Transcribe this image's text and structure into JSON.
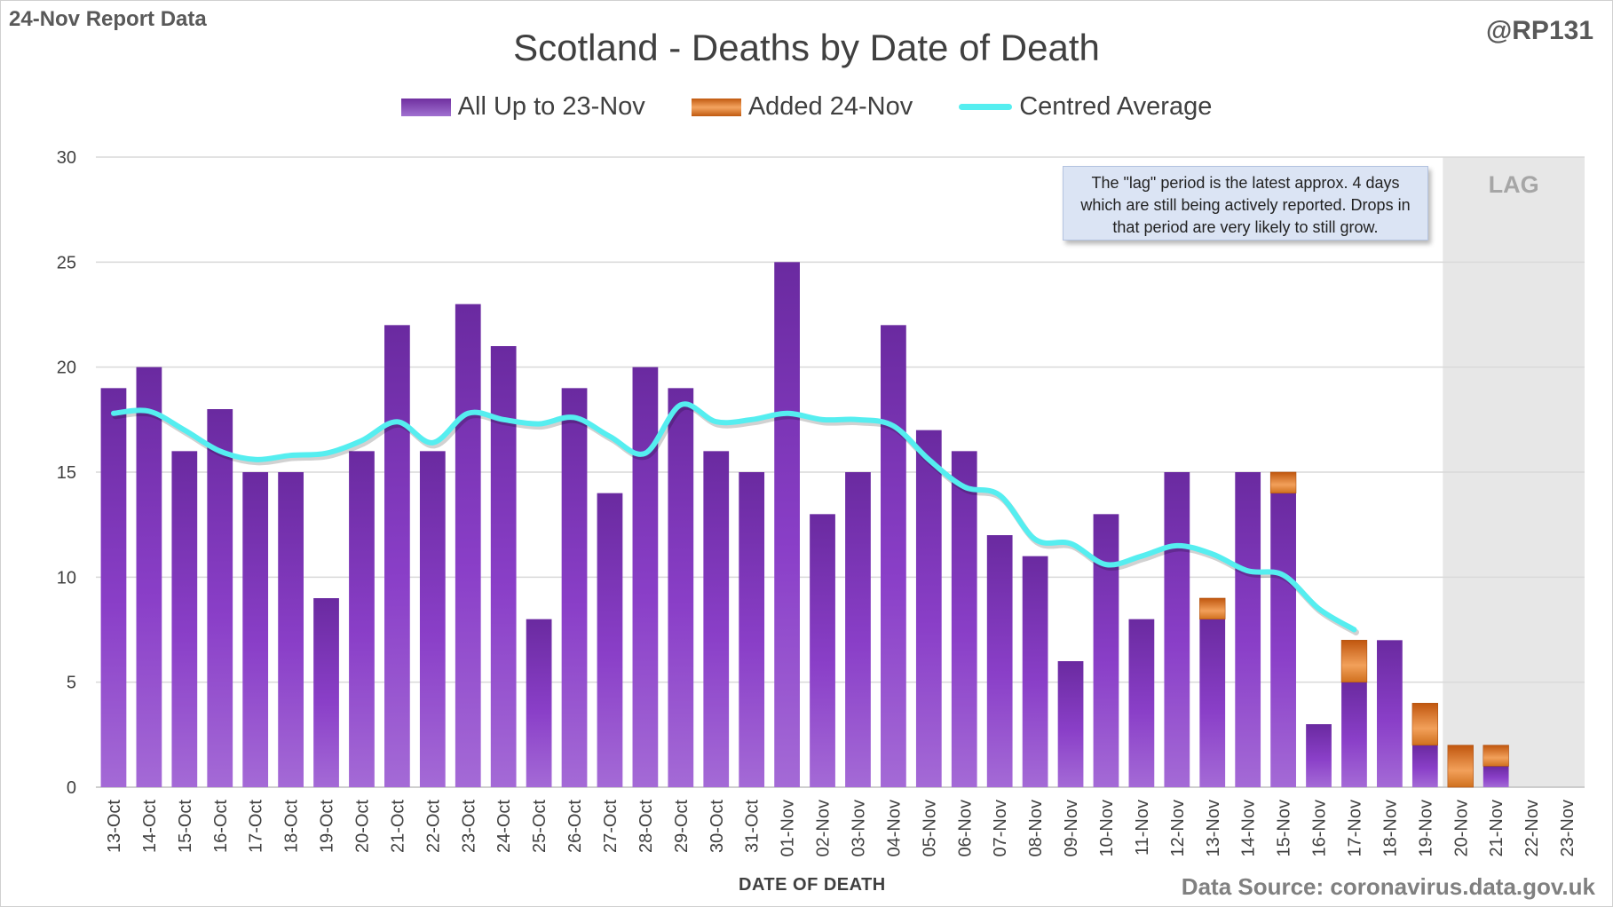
{
  "corner_left": "24-Nov Report Data",
  "corner_right": "@RP131",
  "source": "Data Source: coronavirus.data.gov.uk",
  "note": "The \"lag\" period is the latest approx. 4 days which are still being actively reported. Drops in that period are very likely to still grow.",
  "colors": {
    "base": "#7030a0",
    "added": "#e07828",
    "average": "#55eef0",
    "lag_shade": "#e7e7e7",
    "grid": "#d9d9d9"
  },
  "chart_data": {
    "type": "bar",
    "title": "Scotland - Deaths by Date of Death",
    "xlabel": "DATE OF DEATH",
    "ylabel": "",
    "ylim": [
      0,
      30
    ],
    "yticks": [
      0,
      5,
      10,
      15,
      20,
      25,
      30
    ],
    "grid": true,
    "legend_position": "top",
    "stacked": true,
    "categories": [
      "13-Oct",
      "14-Oct",
      "15-Oct",
      "16-Oct",
      "17-Oct",
      "18-Oct",
      "19-Oct",
      "20-Oct",
      "21-Oct",
      "22-Oct",
      "23-Oct",
      "24-Oct",
      "25-Oct",
      "26-Oct",
      "27-Oct",
      "28-Oct",
      "29-Oct",
      "30-Oct",
      "31-Oct",
      "01-Nov",
      "02-Nov",
      "03-Nov",
      "04-Nov",
      "05-Nov",
      "06-Nov",
      "07-Nov",
      "08-Nov",
      "09-Nov",
      "10-Nov",
      "11-Nov",
      "12-Nov",
      "13-Nov",
      "14-Nov",
      "15-Nov",
      "16-Nov",
      "17-Nov",
      "18-Nov",
      "19-Nov",
      "20-Nov",
      "21-Nov",
      "22-Nov",
      "23-Nov"
    ],
    "series": [
      {
        "name": "All Up to 23-Nov",
        "kind": "bar",
        "values": [
          19,
          20,
          16,
          18,
          15,
          15,
          9,
          16,
          22,
          16,
          23,
          21,
          8,
          19,
          14,
          20,
          19,
          16,
          15,
          25,
          13,
          15,
          22,
          17,
          16,
          12,
          11,
          6,
          13,
          8,
          15,
          8,
          15,
          14,
          3,
          5,
          7,
          2,
          0,
          1,
          0,
          0
        ]
      },
      {
        "name": "Added 24-Nov",
        "kind": "bar",
        "values": [
          0,
          0,
          0,
          0,
          0,
          0,
          0,
          0,
          0,
          0,
          0,
          0,
          0,
          0,
          0,
          0,
          0,
          0,
          0,
          0,
          0,
          0,
          0,
          0,
          0,
          0,
          0,
          0,
          0,
          0,
          0,
          1,
          0,
          1,
          0,
          2,
          0,
          2,
          2,
          1,
          0,
          0
        ]
      },
      {
        "name": "Centred Average",
        "kind": "line",
        "values": [
          17.8,
          17.9,
          17.0,
          16.0,
          15.6,
          15.8,
          15.9,
          16.5,
          17.4,
          16.4,
          17.8,
          17.5,
          17.3,
          17.6,
          16.7,
          15.9,
          18.2,
          17.4,
          17.5,
          17.8,
          17.5,
          17.5,
          17.2,
          15.6,
          14.3,
          13.9,
          11.8,
          11.6,
          10.6,
          11.0,
          11.5,
          11.1,
          10.3,
          10.1,
          8.5,
          7.5,
          null,
          null,
          null,
          null,
          null,
          null
        ]
      }
    ],
    "lag_region": {
      "from": "20-Nov",
      "to": "23-Nov",
      "label": "LAG"
    }
  }
}
